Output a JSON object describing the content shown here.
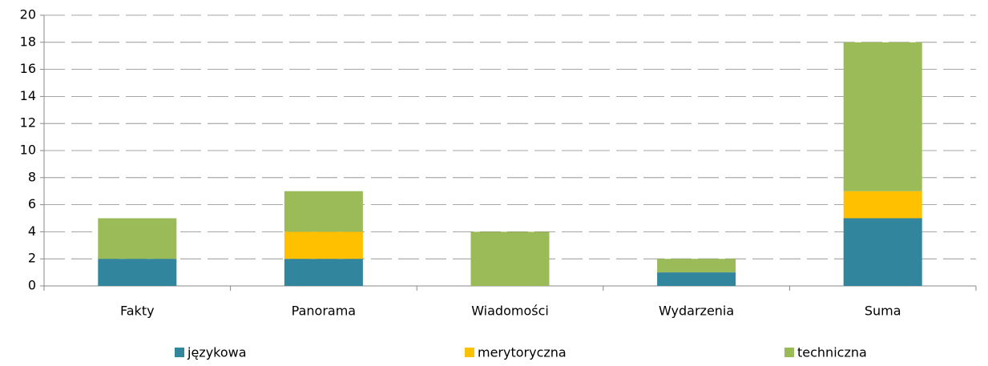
{
  "chart_data": {
    "type": "stacked-bar",
    "categories": [
      "Fakty",
      "Panorama",
      "Wiadomości",
      "Wydarzenia",
      "Suma"
    ],
    "series": [
      {
        "name": "językowa",
        "color": "#31859c",
        "values": [
          2,
          2,
          0,
          1,
          5
        ]
      },
      {
        "name": "merytoryczna",
        "color": "#ffc000",
        "values": [
          0,
          2,
          0,
          0,
          2
        ]
      },
      {
        "name": "techniczna",
        "color": "#9bbb59",
        "values": [
          3,
          3,
          4,
          1,
          11
        ]
      }
    ],
    "ylim": [
      0,
      20
    ],
    "yticks": [
      0,
      2,
      4,
      6,
      8,
      10,
      12,
      14,
      16,
      18,
      20
    ],
    "grid": true,
    "legend": "bottom"
  }
}
